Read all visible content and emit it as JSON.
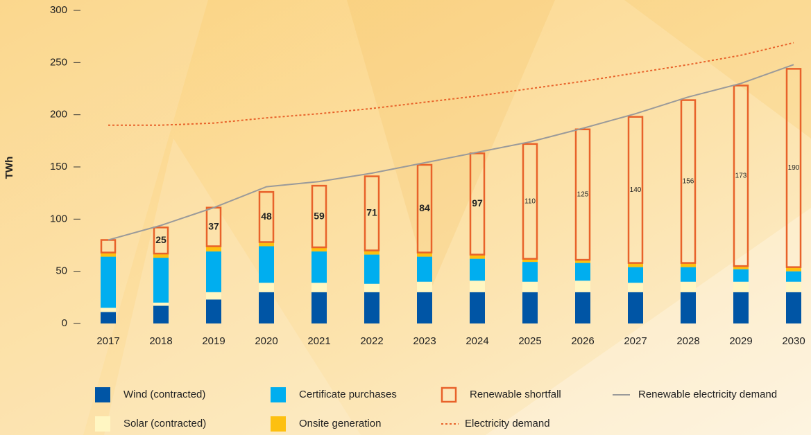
{
  "chart_data": {
    "type": "bar",
    "y_label": "TWh",
    "categories": [
      "2017",
      "2018",
      "2019",
      "2020",
      "2021",
      "2022",
      "2023",
      "2024",
      "2025",
      "2026",
      "2027",
      "2028",
      "2029",
      "2030"
    ],
    "ylim": [
      0,
      300
    ],
    "yticks": [
      0,
      50,
      100,
      150,
      200,
      250,
      300
    ],
    "series": [
      {
        "name": "Wind (contracted)",
        "color": "#0055a5",
        "values": [
          11,
          17,
          23,
          30,
          30,
          30,
          30,
          30,
          30,
          30,
          30,
          30,
          30,
          30
        ]
      },
      {
        "name": "Solar (contracted)",
        "color": "#fff6c2",
        "values": [
          4,
          3,
          7,
          9,
          9,
          8,
          10,
          11,
          10,
          11,
          9,
          10,
          10,
          10
        ]
      },
      {
        "name": "Certificate purchases",
        "color": "#00aeef",
        "values": [
          49,
          43,
          39,
          35,
          30,
          28,
          24,
          21,
          19,
          17,
          15,
          14,
          12,
          10
        ]
      },
      {
        "name": "Onsite generation",
        "color": "#fdc010",
        "values": [
          4,
          4,
          5,
          4,
          4,
          4,
          4,
          4,
          3,
          3,
          4,
          4,
          3,
          4
        ]
      },
      {
        "name": "Renewable shortfall",
        "color": "#e8622a",
        "outline": true,
        "values": [
          12,
          25,
          37,
          48,
          59,
          71,
          84,
          97,
          110,
          125,
          140,
          156,
          173,
          190
        ],
        "value_labels": [
          null,
          "25",
          "37",
          "48",
          "59",
          "71",
          "84",
          "97",
          "110",
          "125",
          "140",
          "156",
          "173",
          "190"
        ]
      },
      {
        "name": "Renewable electricity demand",
        "type": "line",
        "color": "#9a9a9a",
        "values": [
          80,
          94,
          111,
          131,
          136,
          144,
          154,
          164,
          174,
          187,
          201,
          217,
          230,
          248
        ]
      },
      {
        "name": "Electricity demand",
        "type": "line",
        "dashed": true,
        "color": "#e8622a",
        "values": [
          190,
          190,
          192,
          197,
          201,
          206,
          212,
          218,
          225,
          232,
          240,
          248,
          257,
          269
        ]
      }
    ]
  }
}
